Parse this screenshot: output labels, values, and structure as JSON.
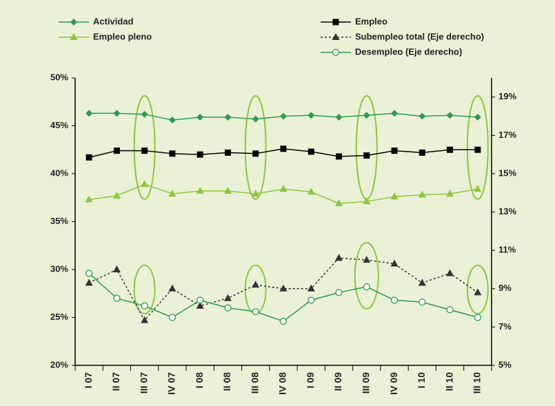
{
  "chart_data": {
    "type": "line",
    "categories": [
      "I 07",
      "II 07",
      "III 07",
      "IV 07",
      "I 08",
      "II 08",
      "III 08",
      "IV 08",
      "I 09",
      "II 09",
      "III 09",
      "IV 09",
      "I 10",
      "II 10",
      "III 10"
    ],
    "ylim": [
      20,
      50
    ],
    "yticks": [
      {
        "value": 20,
        "label": "20%"
      },
      {
        "value": 25,
        "label": "25%"
      },
      {
        "value": 30,
        "label": "30%"
      },
      {
        "value": 35,
        "label": "35%"
      },
      {
        "value": 40,
        "label": "40%"
      },
      {
        "value": 45,
        "label": "45%"
      },
      {
        "value": 50,
        "label": "50%"
      }
    ],
    "y2lim": [
      5,
      20
    ],
    "y2ticks": [
      {
        "value": 5,
        "label": "5%"
      },
      {
        "value": 7,
        "label": "7%"
      },
      {
        "value": 9,
        "label": "9%"
      },
      {
        "value": 11,
        "label": "11%"
      },
      {
        "value": 13,
        "label": "13%"
      },
      {
        "value": 15,
        "label": "15%"
      },
      {
        "value": 17,
        "label": "17%"
      },
      {
        "value": 19,
        "label": "19%"
      }
    ],
    "series": [
      {
        "name": "Actividad",
        "color": "#2e9a4e",
        "marker": "diamond",
        "values": [
          46.3,
          46.3,
          46.2,
          45.6,
          45.9,
          45.9,
          45.7,
          46.0,
          46.1,
          45.9,
          46.1,
          46.3,
          46.0,
          46.1,
          45.9
        ]
      },
      {
        "name": "Empleo pleno",
        "color": "#8cc63f",
        "marker": "triangle",
        "values": [
          37.3,
          37.7,
          38.9,
          37.9,
          38.2,
          38.2,
          37.9,
          38.4,
          38.1,
          36.9,
          37.1,
          37.6,
          37.8,
          37.9,
          38.4
        ]
      },
      {
        "name": "Empleo",
        "color": "#000000",
        "marker": "square",
        "values": [
          41.7,
          42.4,
          42.4,
          42.1,
          42.0,
          42.2,
          42.1,
          42.6,
          42.3,
          41.8,
          41.9,
          42.4,
          42.2,
          42.5,
          42.5
        ]
      },
      {
        "name": "Subempleo total (Eje derecho)",
        "color": "#333333",
        "marker": "triangle",
        "dashed": true,
        "axis": "y2",
        "values": [
          9.3,
          10.0,
          7.35,
          9.0,
          8.1,
          8.5,
          9.2,
          9.0,
          9.0,
          10.6,
          10.5,
          10.3,
          9.3,
          9.8,
          8.8
        ]
      },
      {
        "name": "Desempleo (Eje derecho)",
        "color": "#2e9a4e",
        "marker": "circle",
        "axis": "y2",
        "values": [
          9.8,
          8.5,
          8.1,
          7.5,
          8.4,
          8.0,
          7.8,
          7.3,
          8.4,
          8.8,
          9.1,
          8.4,
          8.3,
          7.9,
          7.5
        ]
      }
    ]
  }
}
